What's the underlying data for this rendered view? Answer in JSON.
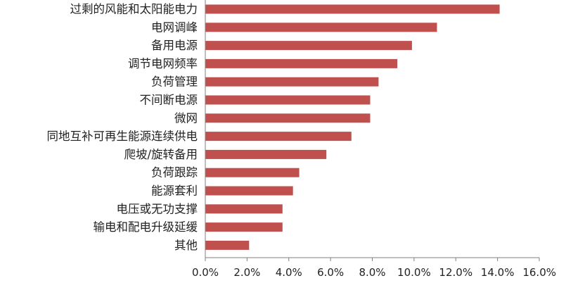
{
  "colors": {
    "bar": "#c0504d",
    "axis": "#7f7f7f",
    "text": "#222222",
    "background": "#ffffff"
  },
  "chart_data": {
    "type": "bar",
    "orientation": "horizontal",
    "title": "",
    "xlabel": "",
    "ylabel": "",
    "xlim": [
      0,
      16
    ],
    "value_unit": "%",
    "grid": false,
    "legend": "none",
    "categories": [
      "过剩的风能和太阳能电力",
      "电网调峰",
      "备用电源",
      "调节电网频率",
      "负荷管理",
      "不间断电源",
      "微网",
      "同地互补可再生能源连续供电",
      "爬坡/旋转备用",
      "负荷跟踪",
      "能源套利",
      "电压或无功支撑",
      "输电和配电升级延缓",
      "其他"
    ],
    "values": [
      14.1,
      11.1,
      9.9,
      9.2,
      8.3,
      7.9,
      7.9,
      7.0,
      5.8,
      4.5,
      4.2,
      3.7,
      3.7,
      2.1
    ],
    "x_ticks": [
      "0.0%",
      "2.0%",
      "4.0%",
      "6.0%",
      "8.0%",
      "10.0%",
      "12.0%",
      "14.0%",
      "16.0%"
    ]
  }
}
